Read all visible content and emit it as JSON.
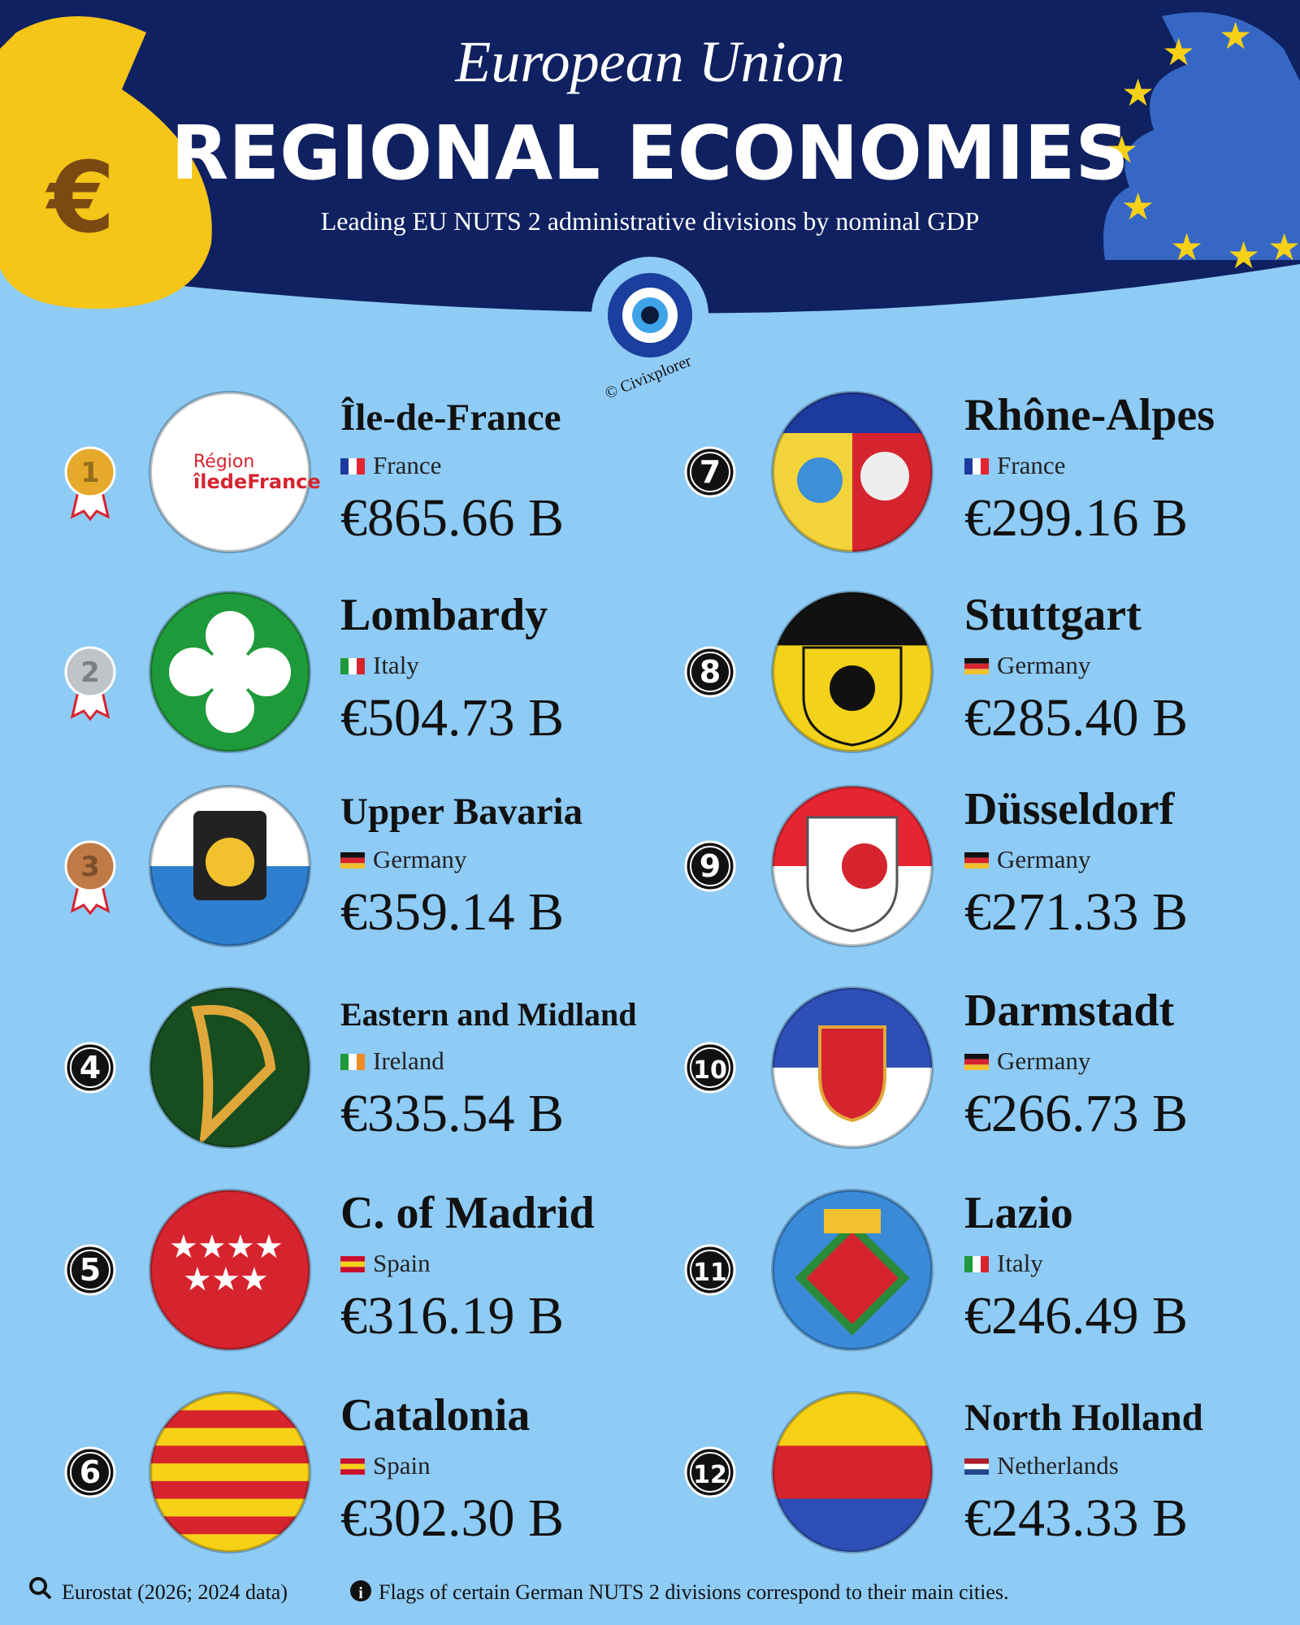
{
  "header": {
    "title": "European Union",
    "heading": "REGIONAL ECONOMIES",
    "subtitle": "Leading EU NUTS 2 administrative divisions by nominal GDP",
    "credit": "© Civixplorer"
  },
  "regions": [
    {
      "rank": 1,
      "name": "Île-de-France",
      "country": "France",
      "gdp": "€865.66 B",
      "logo": [
        "Région",
        "îledeFrance"
      ]
    },
    {
      "rank": 2,
      "name": "Lombardy",
      "country": "Italy",
      "gdp": "€504.73 B"
    },
    {
      "rank": 3,
      "name": "Upper Bavaria",
      "country": "Germany",
      "gdp": "€359.14 B"
    },
    {
      "rank": 4,
      "name": "Eastern and Midland",
      "country": "Ireland",
      "gdp": "€335.54 B"
    },
    {
      "rank": 5,
      "name": "C. of Madrid",
      "country": "Spain",
      "gdp": "€316.19 B"
    },
    {
      "rank": 6,
      "name": "Catalonia",
      "country": "Spain",
      "gdp": "€302.30 B"
    },
    {
      "rank": 7,
      "name": "Rhône-Alpes",
      "country": "France",
      "gdp": "€299.16 B"
    },
    {
      "rank": 8,
      "name": "Stuttgart",
      "country": "Germany",
      "gdp": "€285.40 B"
    },
    {
      "rank": 9,
      "name": "Düsseldorf",
      "country": "Germany",
      "gdp": "€271.33 B"
    },
    {
      "rank": 10,
      "name": "Darmstadt",
      "country": "Germany",
      "gdp": "€266.73 B"
    },
    {
      "rank": 11,
      "name": "Lazio",
      "country": "Italy",
      "gdp": "€246.49 B"
    },
    {
      "rank": 12,
      "name": "North Holland",
      "country": "Netherlands",
      "gdp": "€243.33 B"
    }
  ],
  "footer": {
    "source": "Eurostat (2026; 2024 data)",
    "note": "Flags of certain German NUTS 2 divisions correspond to their main cities."
  }
}
